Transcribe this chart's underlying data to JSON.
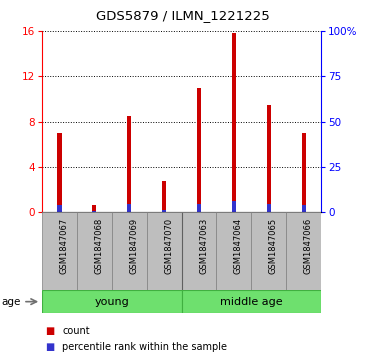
{
  "title": "GDS5879 / ILMN_1221225",
  "samples": [
    "GSM1847067",
    "GSM1847068",
    "GSM1847069",
    "GSM1847070",
    "GSM1847063",
    "GSM1847064",
    "GSM1847065",
    "GSM1847066"
  ],
  "count_values": [
    7.0,
    0.65,
    8.5,
    2.8,
    11.0,
    15.8,
    9.5,
    7.0
  ],
  "percentile_values": [
    4.0,
    1.0,
    4.7,
    1.2,
    4.8,
    6.5,
    4.7,
    4.2
  ],
  "group_separator": 4,
  "ylim_left": [
    0,
    16
  ],
  "ylim_right": [
    0,
    100
  ],
  "yticks_left": [
    0,
    4,
    8,
    12,
    16
  ],
  "yticks_right": [
    0,
    25,
    50,
    75,
    100
  ],
  "ytick_labels_right": [
    "0",
    "25",
    "50",
    "75",
    "100%"
  ],
  "red_bar_width": 0.12,
  "blue_bar_width": 0.12,
  "bar_color_count": "#CC0000",
  "bar_color_percentile": "#3333CC",
  "grid_linestyle": ":",
  "grid_color": "black",
  "age_label": "age",
  "legend_count": "count",
  "legend_percentile": "percentile rank within the sample",
  "background_xtick": "#BEBEBE",
  "background_group": "#6EE06E",
  "group_label_young": "young",
  "group_label_middle": "middle age"
}
